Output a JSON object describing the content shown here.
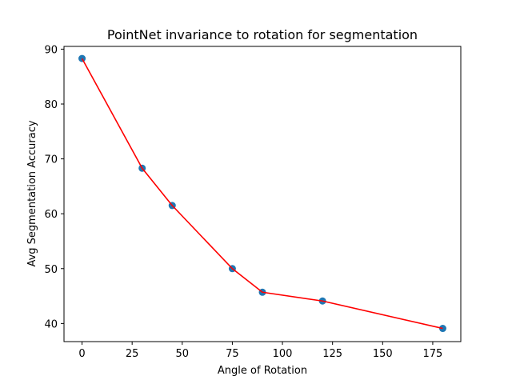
{
  "chart_data": {
    "type": "line",
    "title": "PointNet invariance to rotation for segmentation",
    "xlabel": "Angle of Rotation",
    "ylabel": "Avg Segmentation Accuracy",
    "xlim": [
      -9,
      189
    ],
    "ylim": [
      36.7,
      90.5
    ],
    "xticks": [
      0,
      25,
      50,
      75,
      100,
      125,
      150,
      175
    ],
    "yticks": [
      40,
      50,
      60,
      70,
      80,
      90
    ],
    "grid": false,
    "series": [
      {
        "x": [
          0,
          30,
          45,
          75,
          90,
          120,
          180
        ],
        "y": [
          88.3,
          68.3,
          61.5,
          50.0,
          45.7,
          44.1,
          39.1
        ],
        "line_color": "#ff0000",
        "marker_color": "#1f77b4"
      }
    ]
  }
}
